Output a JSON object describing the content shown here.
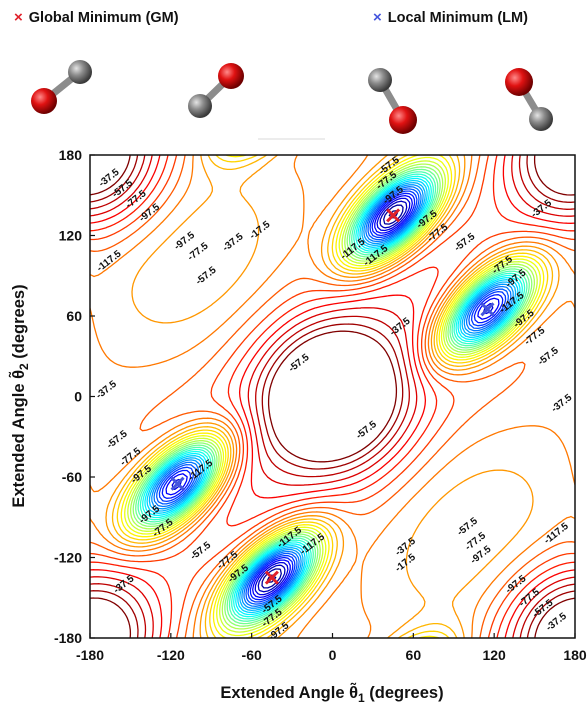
{
  "legend": {
    "global": {
      "mark": "×",
      "label": "Global Minimum (GM)",
      "color": "#e0202a"
    },
    "local": {
      "mark": "×",
      "label": "Local Minimum (LM)",
      "color": "#4455dd"
    }
  },
  "molecules": [
    {
      "name": "co-molecule-1",
      "oxygen": "lower-left",
      "carbon": "upper-right"
    },
    {
      "name": "co-molecule-2",
      "oxygen": "upper-right",
      "carbon": "lower-left"
    },
    {
      "name": "co-molecule-3",
      "oxygen": "lower-right",
      "carbon": "upper-left"
    },
    {
      "name": "co-molecule-4",
      "oxygen": "upper-left",
      "carbon": "lower-right"
    }
  ],
  "colors": {
    "oxygen": "#e01212",
    "carbon": "#8c8c8c"
  },
  "chart_data": {
    "type": "contour",
    "xlabel_prefix": "Extended Angle ",
    "xlabel_symbol": "θ̃",
    "xlabel_sub": "1",
    "xlabel_suffix": "  (degrees)",
    "ylabel_prefix": "Extended Angle ",
    "ylabel_symbol": "θ̃",
    "ylabel_sub": "2",
    "ylabel_suffix": "  (degrees)",
    "xlim": [
      -180,
      180
    ],
    "ylim": [
      -180,
      180
    ],
    "xticks": [
      -180,
      -120,
      -60,
      0,
      60,
      120,
      180
    ],
    "yticks": [
      180,
      120,
      60,
      0,
      -60,
      -120,
      -180
    ],
    "xtick_labels": [
      "-180",
      "-120",
      "-60",
      "0",
      "60",
      "120",
      "180"
    ],
    "ytick_labels": [
      "180",
      "120",
      "60",
      "0",
      "-60",
      "-120",
      "-180"
    ],
    "colormap": "jet",
    "global_minima": [
      {
        "x": 45,
        "y": 135
      },
      {
        "x": -45,
        "y": -135
      }
    ],
    "local_minima": [
      {
        "x": 115,
        "y": 65
      },
      {
        "x": -115,
        "y": -65
      }
    ],
    "contour_labels": [
      {
        "text": "-37.5",
        "x": -166,
        "y": 163
      },
      {
        "text": "-57.5",
        "x": -156,
        "y": 155
      },
      {
        "text": "-77.5",
        "x": -146,
        "y": 147
      },
      {
        "text": "-97.5",
        "x": -136,
        "y": 137
      },
      {
        "text": "-117.5",
        "x": -166,
        "y": 101
      },
      {
        "text": "-97.5",
        "x": -110,
        "y": 116
      },
      {
        "text": "-77.5",
        "x": -100,
        "y": 108
      },
      {
        "text": "-57.5",
        "x": -94,
        "y": 90
      },
      {
        "text": "-37.5",
        "x": -74,
        "y": 115
      },
      {
        "text": "-17.5",
        "x": -54,
        "y": 124
      },
      {
        "text": "-117.5",
        "x": 15,
        "y": 110
      },
      {
        "text": "-117.5",
        "x": 32,
        "y": 105
      },
      {
        "text": "-57.5",
        "x": 42,
        "y": 172
      },
      {
        "text": "-77.5",
        "x": 40,
        "y": 161
      },
      {
        "text": "-97.5",
        "x": 45,
        "y": 150
      },
      {
        "text": "-97.5",
        "x": 70,
        "y": 132
      },
      {
        "text": "-77.5",
        "x": 78,
        "y": 122
      },
      {
        "text": "-57.5",
        "x": 98,
        "y": 115
      },
      {
        "text": "-37.5",
        "x": 155,
        "y": 140
      },
      {
        "text": "-77.5",
        "x": 126,
        "y": 98
      },
      {
        "text": "-97.5",
        "x": 136,
        "y": 88
      },
      {
        "text": "-117.5",
        "x": 133,
        "y": 70
      },
      {
        "text": "-37.5",
        "x": 50,
        "y": 52
      },
      {
        "text": "-57.5",
        "x": -25,
        "y": 25
      },
      {
        "text": "-57.5",
        "x": 25,
        "y": -25
      },
      {
        "text": "-97.5",
        "x": 142,
        "y": 58
      },
      {
        "text": "-77.5",
        "x": 150,
        "y": 45
      },
      {
        "text": "-57.5",
        "x": 160,
        "y": 30
      },
      {
        "text": "-37.5",
        "x": 170,
        "y": -5
      },
      {
        "text": "-37.5",
        "x": -168,
        "y": 5
      },
      {
        "text": "-57.5",
        "x": -160,
        "y": -32
      },
      {
        "text": "-77.5",
        "x": -150,
        "y": -45
      },
      {
        "text": "-97.5",
        "x": -142,
        "y": -58
      },
      {
        "text": "-117.5",
        "x": -98,
        "y": -55
      },
      {
        "text": "-97.5",
        "x": -136,
        "y": -88
      },
      {
        "text": "-77.5",
        "x": -126,
        "y": -98
      },
      {
        "text": "-57.5",
        "x": -98,
        "y": -115
      },
      {
        "text": "-77.5",
        "x": -78,
        "y": -122
      },
      {
        "text": "-97.5",
        "x": -70,
        "y": -132
      },
      {
        "text": "-117.5",
        "x": -32,
        "y": -105
      },
      {
        "text": "-117.5",
        "x": -15,
        "y": -110
      },
      {
        "text": "-37.5",
        "x": 54,
        "y": -112
      },
      {
        "text": "-17.5",
        "x": 54,
        "y": -124
      },
      {
        "text": "-37.5",
        "x": -155,
        "y": -140
      },
      {
        "text": "-57.5",
        "x": -45,
        "y": -155
      },
      {
        "text": "-77.5",
        "x": -45,
        "y": -165
      },
      {
        "text": "-97.5",
        "x": -40,
        "y": -175
      },
      {
        "text": "-57.5",
        "x": 100,
        "y": -97
      },
      {
        "text": "-77.5",
        "x": 106,
        "y": -108
      },
      {
        "text": "-97.5",
        "x": 110,
        "y": -118
      },
      {
        "text": "-117.5",
        "x": 166,
        "y": -102
      },
      {
        "text": "-97.5",
        "x": 136,
        "y": -140
      },
      {
        "text": "-77.5",
        "x": 146,
        "y": -150
      },
      {
        "text": "-57.5",
        "x": 156,
        "y": -158
      },
      {
        "text": "-37.5",
        "x": 166,
        "y": -168
      }
    ]
  }
}
